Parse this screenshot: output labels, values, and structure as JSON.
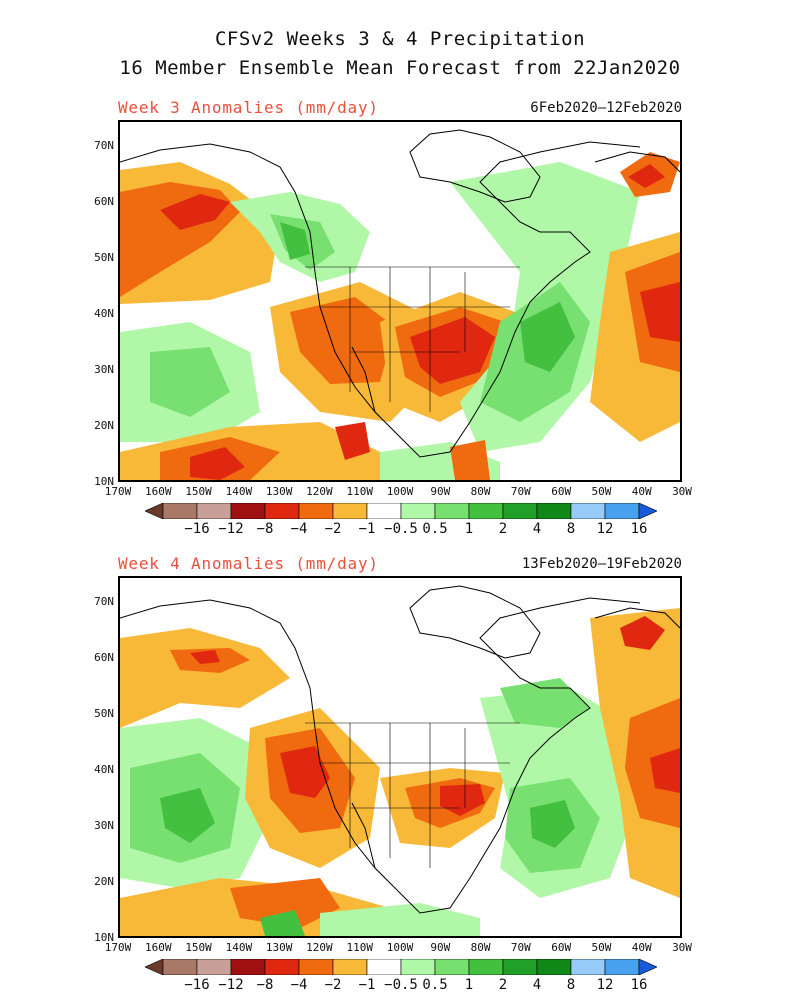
{
  "header": {
    "title_line1": "CFSv2 Weeks 3 & 4 Precipitation",
    "title_line2": "16 Member Ensemble Mean Forecast from 22Jan2020"
  },
  "panels": [
    {
      "id": "week3",
      "title": "Week 3 Anomalies (mm/day)",
      "dates": "6Feb2020–12Feb2020"
    },
    {
      "id": "week4",
      "title": "Week 4 Anomalies (mm/day)",
      "dates": "13Feb2020–19Feb2020"
    }
  ],
  "axes": {
    "lat_labels": [
      "70N",
      "60N",
      "50N",
      "40N",
      "30N",
      "20N",
      "10N"
    ],
    "lon_labels": [
      "170W",
      "160W",
      "150W",
      "140W",
      "130W",
      "120W",
      "110W",
      "100W",
      "90W",
      "80W",
      "70W",
      "60W",
      "50W",
      "40W",
      "30W"
    ]
  },
  "colorbar": {
    "labels": [
      "−16",
      "−12",
      "−8",
      "−4",
      "−2",
      "−1",
      "−0.5",
      "0.5",
      "1",
      "2",
      "4",
      "8",
      "12",
      "16"
    ],
    "colors": [
      "#6b3a2c",
      "#a87868",
      "#c8a098",
      "#a01010",
      "#e02810",
      "#f06a10",
      "#f8b838",
      "#ffffff",
      "#b0f8a8",
      "#78e070",
      "#44c040",
      "#20a028",
      "#108818",
      "#98ccf8",
      "#4aa0f0",
      "#1a5ad8"
    ]
  },
  "legend_colors": {
    "dry_strong": "#e02810",
    "dry_moderate": "#f06a10",
    "dry_weak": "#f8b838",
    "wet_weak": "#b0f8a8",
    "wet_moderate": "#78e070",
    "wet_strong": "#44c040"
  }
}
